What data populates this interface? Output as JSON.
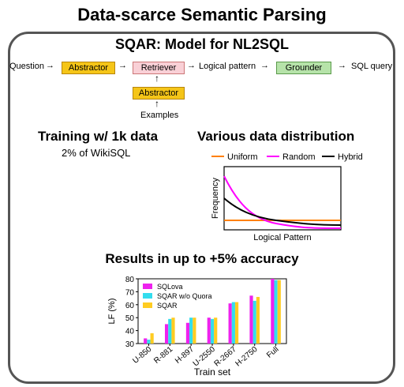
{
  "title": "Data-scarce Semantic Parsing",
  "panel_title": "SQAR: Model for NL2SQL",
  "pipeline": {
    "question": "Question",
    "abstractor": "Abstractor",
    "retriever": "Retriever",
    "logical_pattern": "Logical pattern",
    "grounder": "Grounder",
    "sql_query": "SQL query",
    "abstractor2": "Abstractor",
    "examples": "Examples"
  },
  "training": {
    "heading": "Training w/ 1k data",
    "sub": "2% of WikiSQL"
  },
  "distribution": {
    "heading": "Various data distribution",
    "legend": [
      "Uniform",
      "Random",
      "Hybrid"
    ],
    "colors": [
      "#ff8000",
      "#ff00ff",
      "#000000"
    ],
    "ylabel": "Frequency",
    "xlabel": "Logical Pattern"
  },
  "results_heading": "Results in up to +5% accuracy",
  "chart_data": {
    "type": "bar",
    "categories": [
      "U-850",
      "R-881",
      "H-897",
      "U-2550",
      "R-2667",
      "H-2750",
      "Full"
    ],
    "series": [
      {
        "name": "SQLova",
        "color": "#ee22ee",
        "values": [
          34,
          45,
          46,
          50,
          61,
          67,
          80
        ]
      },
      {
        "name": "SQAR w/o Quora",
        "color": "#33ddee",
        "values": [
          33,
          49,
          50,
          49,
          62,
          63,
          79
        ]
      },
      {
        "name": "SQAR",
        "color": "#ffcc22",
        "values": [
          38,
          50,
          50,
          50,
          62,
          66,
          79
        ]
      }
    ],
    "xlabel": "Train set",
    "ylabel": "LF (%)",
    "ylim": [
      30,
      80
    ],
    "yticks": [
      30,
      40,
      50,
      60,
      70,
      80
    ]
  }
}
